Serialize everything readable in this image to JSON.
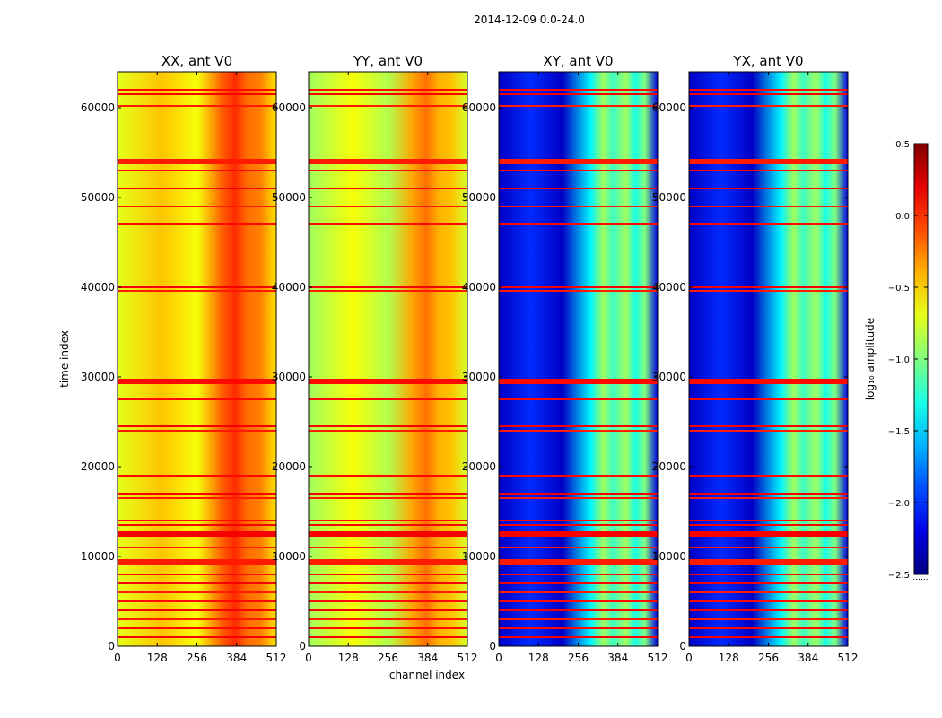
{
  "chart_data": {
    "type": "heatmap",
    "suptitle": "2014-12-09 0.0-24.0",
    "xlabel": "channel index",
    "ylabel": "time index",
    "xlim": [
      0,
      512
    ],
    "ylim": [
      0,
      64000
    ],
    "xticks": [
      "0",
      "128",
      "256",
      "384",
      "512"
    ],
    "yticks": [
      "0",
      "10000",
      "20000",
      "30000",
      "40000",
      "50000",
      "60000"
    ],
    "colormap": "jet",
    "panels": [
      {
        "title": "XX, ant V0",
        "base_level": -0.7
      },
      {
        "title": "YY, ant V0",
        "base_level": -0.9
      },
      {
        "title": "XY, ant V0",
        "base_level": -2.2
      },
      {
        "title": "YX, ant V0",
        "base_level": -2.2
      }
    ],
    "colorbar": {
      "label": "log₁₀ amplitude",
      "range": [
        -2.5,
        0.5
      ],
      "ticks": [
        "0.5",
        "0.0",
        "−0.5",
        "−1.0",
        "−1.5",
        "−2.0",
        "−2.5"
      ],
      "extra_label": "......"
    },
    "flagged_rows": [
      54000,
      29500,
      12500,
      9400,
      62000,
      61500,
      60200,
      53000,
      51000,
      49000,
      47000,
      40000,
      39600,
      27500,
      24500,
      24000,
      19000,
      17000,
      16500,
      14000,
      13500,
      11000,
      8000,
      7000,
      6000,
      5000,
      4000,
      3000,
      2000,
      1000
    ]
  }
}
